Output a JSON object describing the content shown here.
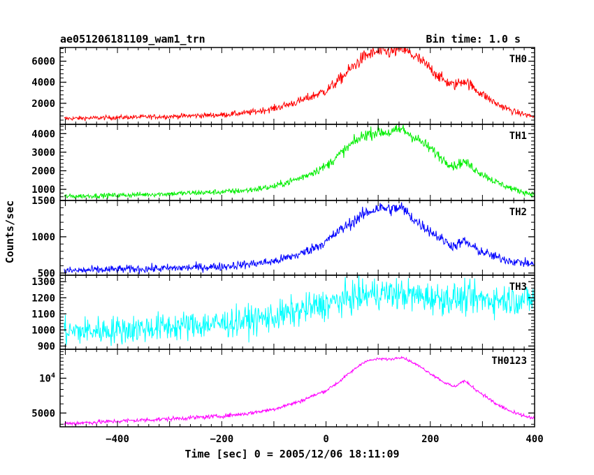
{
  "header": {
    "title": "ae051206181109_wam1_trn",
    "bin_time": "Bin time: 1.0 s"
  },
  "chart_data": {
    "type": "line",
    "xlabel": "Time [sec] 0 = 2005/12/06 18:11:09",
    "ylabel": "Counts/sec",
    "xlim": [
      -510,
      400
    ],
    "x_ticks": [
      -400,
      -200,
      0,
      200,
      400
    ],
    "x_tick_labels": [
      "−400",
      "−200",
      "0",
      "200",
      "400"
    ],
    "panels": [
      {
        "name": "TH0",
        "color": "#ff0000",
        "scale": "linear",
        "ylim": [
          0,
          7300
        ],
        "y_ticks": [
          2000,
          4000,
          6000
        ],
        "y_tick_labels": [
          "2000",
          "4000",
          "6000"
        ],
        "noise": 100,
        "points": [
          [
            -500,
            550
          ],
          [
            -400,
            650
          ],
          [
            -300,
            750
          ],
          [
            -200,
            900
          ],
          [
            -150,
            1100
          ],
          [
            -100,
            1500
          ],
          [
            -50,
            2200
          ],
          [
            0,
            3200
          ],
          [
            25,
            4200
          ],
          [
            50,
            5400
          ],
          [
            75,
            6500
          ],
          [
            100,
            6900
          ],
          [
            125,
            6850
          ],
          [
            145,
            7200
          ],
          [
            175,
            6300
          ],
          [
            200,
            5300
          ],
          [
            225,
            4200
          ],
          [
            245,
            3700
          ],
          [
            265,
            4200
          ],
          [
            290,
            3200
          ],
          [
            325,
            2000
          ],
          [
            360,
            1200
          ],
          [
            400,
            700
          ]
        ]
      },
      {
        "name": "TH1",
        "color": "#00ee00",
        "scale": "linear",
        "ylim": [
          400,
          4500
        ],
        "y_ticks": [
          1000,
          2000,
          3000,
          4000
        ],
        "y_tick_labels": [
          "1000",
          "2000",
          "3000",
          "4000"
        ],
        "noise": 65,
        "points": [
          [
            -500,
            620
          ],
          [
            -400,
            680
          ],
          [
            -300,
            760
          ],
          [
            -200,
            860
          ],
          [
            -150,
            950
          ],
          [
            -100,
            1150
          ],
          [
            -50,
            1600
          ],
          [
            0,
            2250
          ],
          [
            25,
            2850
          ],
          [
            50,
            3450
          ],
          [
            75,
            3950
          ],
          [
            100,
            4100
          ],
          [
            125,
            4050
          ],
          [
            145,
            4250
          ],
          [
            175,
            3700
          ],
          [
            200,
            3200
          ],
          [
            225,
            2600
          ],
          [
            245,
            2250
          ],
          [
            265,
            2500
          ],
          [
            290,
            2000
          ],
          [
            325,
            1400
          ],
          [
            360,
            1000
          ],
          [
            400,
            700
          ]
        ]
      },
      {
        "name": "TH2",
        "color": "#0000ff",
        "scale": "linear",
        "ylim": [
          470,
          1500
        ],
        "y_ticks": [
          500,
          1000,
          1500
        ],
        "y_tick_labels": [
          "500",
          "1000",
          "1500"
        ],
        "noise": 28,
        "points": [
          [
            -500,
            530
          ],
          [
            -400,
            550
          ],
          [
            -300,
            565
          ],
          [
            -200,
            590
          ],
          [
            -150,
            620
          ],
          [
            -100,
            660
          ],
          [
            -50,
            760
          ],
          [
            0,
            930
          ],
          [
            25,
            1080
          ],
          [
            50,
            1200
          ],
          [
            75,
            1320
          ],
          [
            100,
            1400
          ],
          [
            125,
            1380
          ],
          [
            145,
            1400
          ],
          [
            175,
            1200
          ],
          [
            200,
            1080
          ],
          [
            225,
            950
          ],
          [
            245,
            870
          ],
          [
            265,
            940
          ],
          [
            290,
            820
          ],
          [
            325,
            720
          ],
          [
            360,
            660
          ],
          [
            400,
            620
          ]
        ]
      },
      {
        "name": "TH3",
        "color": "#00ffff",
        "scale": "linear",
        "ylim": [
          880,
          1340
        ],
        "y_ticks": [
          900,
          1000,
          1100,
          1200,
          1300
        ],
        "y_tick_labels": [
          "900",
          "1000",
          "1100",
          "1200",
          "1300"
        ],
        "noise": 45,
        "points": [
          [
            -500,
            990
          ],
          [
            -400,
            1000
          ],
          [
            -300,
            1020
          ],
          [
            -200,
            1040
          ],
          [
            -100,
            1080
          ],
          [
            0,
            1160
          ],
          [
            50,
            1200
          ],
          [
            100,
            1230
          ],
          [
            150,
            1220
          ],
          [
            200,
            1200
          ],
          [
            300,
            1190
          ],
          [
            400,
            1190
          ]
        ]
      },
      {
        "name": "TH0123",
        "color": "#ff00ff",
        "scale": "log",
        "ylim": [
          3800,
          17800
        ],
        "y_ticks": [
          5000,
          10000
        ],
        "y_tick_labels": [
          "5000",
          "10^4"
        ],
        "noise": 90,
        "points": [
          [
            -500,
            4050
          ],
          [
            -400,
            4250
          ],
          [
            -300,
            4450
          ],
          [
            -200,
            4700
          ],
          [
            -150,
            4950
          ],
          [
            -100,
            5400
          ],
          [
            -50,
            6300
          ],
          [
            0,
            7800
          ],
          [
            25,
            9300
          ],
          [
            50,
            11500
          ],
          [
            75,
            14000
          ],
          [
            100,
            14700
          ],
          [
            125,
            14600
          ],
          [
            145,
            15300
          ],
          [
            175,
            13000
          ],
          [
            200,
            11000
          ],
          [
            225,
            9300
          ],
          [
            245,
            8400
          ],
          [
            265,
            9500
          ],
          [
            290,
            7800
          ],
          [
            325,
            6000
          ],
          [
            360,
            5000
          ],
          [
            400,
            4450
          ]
        ]
      }
    ]
  }
}
